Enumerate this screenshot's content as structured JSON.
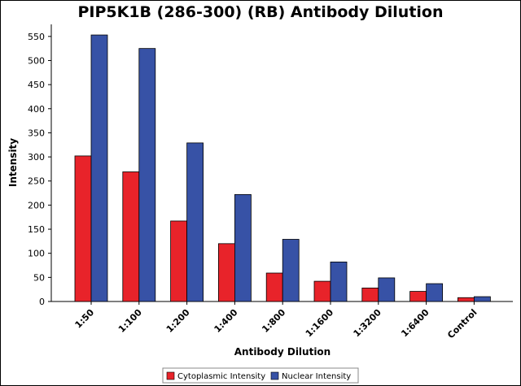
{
  "chart_data": {
    "type": "bar",
    "title": "PIP5K1B (286-300) (RB) Antibody Dilution",
    "xlabel": "Antibody Dilution",
    "ylabel": "Intensity",
    "categories": [
      "1:50",
      "1:100",
      "1:200",
      "1:400",
      "1:800",
      "1:1600",
      "1:3200",
      "1:6400",
      "Control"
    ],
    "series": [
      {
        "name": "Cytoplasmic Intensity",
        "color": "#e8232a",
        "values": [
          302,
          269,
          167,
          120,
          59,
          42,
          28,
          21,
          8
        ]
      },
      {
        "name": "Nuclear Intensity",
        "color": "#3752a6",
        "values": [
          553,
          525,
          329,
          222,
          129,
          82,
          49,
          37,
          10
        ]
      }
    ],
    "ylim": [
      0,
      575
    ],
    "yticks": [
      0,
      50,
      100,
      150,
      200,
      250,
      300,
      350,
      400,
      450,
      500,
      550
    ],
    "grid": false,
    "legend_position": "bottom-center"
  }
}
